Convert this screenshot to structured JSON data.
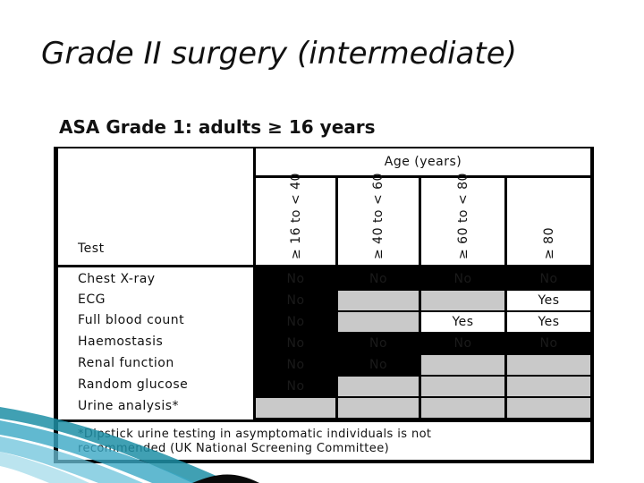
{
  "slide": {
    "title": "Grade II surgery (intermediate)"
  },
  "table": {
    "heading": "ASA Grade 1: adults ≥ 16 years",
    "age_header": "Age (years)",
    "test_header": "Test",
    "columns": [
      "≥ 16 to < 40",
      "≥ 40 to < 60",
      "≥ 60 to < 80",
      "≥ 80"
    ],
    "rows": [
      {
        "label": "Chest X-ray",
        "values": [
          "No",
          "No",
          "No",
          "No"
        ]
      },
      {
        "label": "ECG",
        "values": [
          "No",
          "",
          "",
          "Yes"
        ]
      },
      {
        "label": "Full blood count",
        "values": [
          "No",
          "",
          "Yes",
          "Yes"
        ]
      },
      {
        "label": "Haemostasis",
        "values": [
          "No",
          "No",
          "No",
          "No"
        ]
      },
      {
        "label": "Renal function",
        "values": [
          "No",
          "No",
          "",
          ""
        ]
      },
      {
        "label": "Random glucose",
        "values": [
          "No",
          "",
          "",
          ""
        ]
      },
      {
        "label": "Urine analysis*",
        "values": [
          "",
          "",
          "",
          ""
        ]
      }
    ],
    "footnote_line1": "*Dipstick urine testing in asymptomatic individuals is not",
    "footnote_line2": "recommended (UK National Screening Committee)"
  },
  "colors": {
    "cell_black": "#000000",
    "cell_gray": "#c9c9c9",
    "cell_white": "#ffffff",
    "accent_teal": "#1f8fa6"
  }
}
